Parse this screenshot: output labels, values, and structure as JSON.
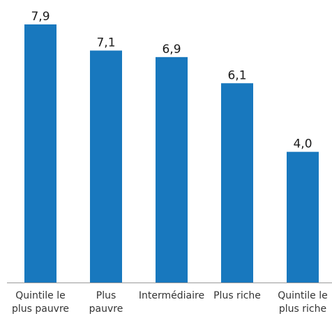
{
  "chart_data": {
    "type": "bar",
    "categories": [
      [
        "Quintile le",
        "plus pauvre"
      ],
      [
        "Plus",
        "pauvre"
      ],
      [
        "Intermédiaire"
      ],
      [
        "Plus riche"
      ],
      [
        "Quintile le",
        "plus riche"
      ]
    ],
    "values": [
      7.9,
      7.1,
      6.9,
      6.1,
      4.0
    ],
    "value_labels": [
      "7,9",
      "7,1",
      "6,9",
      "6,1",
      "4,0"
    ],
    "title": "",
    "xlabel": "",
    "ylabel": "",
    "ylim": [
      0,
      7.9
    ],
    "grid": false,
    "legend": "none",
    "colors": {
      "bar": "#1878BE",
      "axis": "#9a9a9a"
    }
  }
}
